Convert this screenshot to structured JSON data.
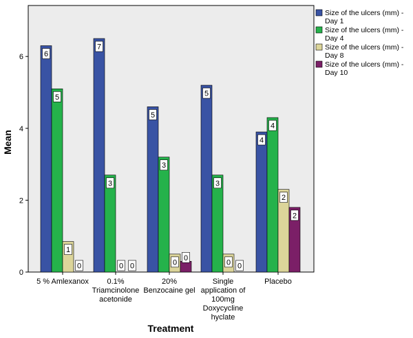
{
  "chart_data": {
    "type": "bar",
    "title": "",
    "xlabel": "Treatment",
    "ylabel": "Mean",
    "ylim": [
      0,
      7.2
    ],
    "yticks": [
      "0",
      "2",
      "4",
      "6"
    ],
    "categories": [
      [
        "5 % Amlexanox"
      ],
      [
        "0.1%",
        "Triamcinolone",
        "acetonide"
      ],
      [
        "20%",
        "Benzocaine gel"
      ],
      [
        "Single",
        "application of",
        "100mg",
        "Doxycycline",
        "hyclate"
      ],
      [
        "Placebo"
      ]
    ],
    "series": [
      {
        "name": [
          "Size of the ulcers (mm) -",
          "Day 1"
        ],
        "color": "#3953a4",
        "values": [
          6.3,
          6.5,
          4.6,
          5.2,
          3.9
        ],
        "labels": [
          "6",
          "7",
          "5",
          "5",
          "4"
        ]
      },
      {
        "name": [
          "Size of the ulcers (mm) -",
          "Day 4"
        ],
        "color": "#25b24b",
        "values": [
          5.1,
          2.7,
          3.2,
          2.7,
          4.3
        ],
        "labels": [
          "5",
          "3",
          "3",
          "3",
          "4"
        ]
      },
      {
        "name": [
          "Size of the ulcers (mm) -",
          "Day 8"
        ],
        "color": "#dcd59a",
        "values": [
          0.85,
          0,
          0.5,
          0.5,
          2.3
        ],
        "labels": [
          "1",
          "0",
          "0",
          "0",
          "2"
        ]
      },
      {
        "name": [
          "Size of the ulcers (mm) -",
          "Day 10"
        ],
        "color": "#7b1f67",
        "values": [
          0,
          0,
          0.3,
          0,
          1.8
        ],
        "labels": [
          "0",
          "0",
          "0",
          "0",
          "2"
        ]
      }
    ],
    "legend_position": "top-right",
    "grid": false,
    "plot_background": "#ececec"
  }
}
